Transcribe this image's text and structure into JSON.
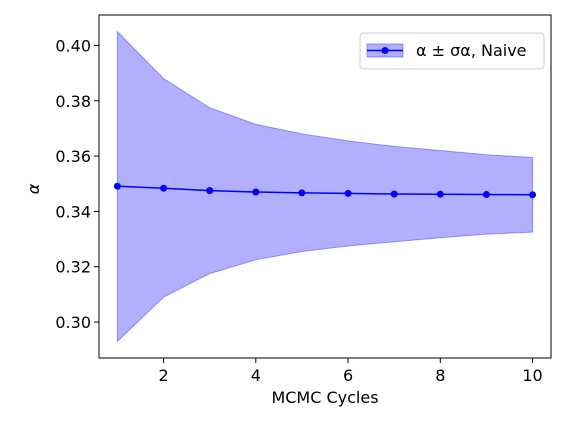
{
  "chart_data": {
    "type": "line",
    "xlabel": "MCMC Cycles",
    "ylabel": "α",
    "xlim": [
      0.6,
      10.4
    ],
    "ylim": [
      0.287,
      0.411
    ],
    "xticks": [
      2,
      4,
      6,
      8,
      10
    ],
    "xtick_labels": [
      "2",
      "4",
      "6",
      "8",
      "10"
    ],
    "yticks": [
      0.3,
      0.32,
      0.34,
      0.36,
      0.38,
      0.4
    ],
    "ytick_labels": [
      "0.30",
      "0.32",
      "0.34",
      "0.36",
      "0.38",
      "0.40"
    ],
    "grid": false,
    "legend_position": "top-right",
    "series": [
      {
        "name": "α ± σα, Naive",
        "color": "#0000ff",
        "band_color": "#b0b0ff",
        "x": [
          1,
          2,
          3,
          4,
          5,
          6,
          7,
          8,
          9,
          10
        ],
        "y": [
          0.3491,
          0.3484,
          0.3475,
          0.347,
          0.3467,
          0.3465,
          0.3463,
          0.3462,
          0.3461,
          0.346
        ],
        "y_upper": [
          0.405,
          0.388,
          0.3775,
          0.3715,
          0.368,
          0.3655,
          0.3635,
          0.362,
          0.3605,
          0.3595
        ],
        "y_lower": [
          0.293,
          0.309,
          0.3175,
          0.3225,
          0.3255,
          0.3275,
          0.329,
          0.3305,
          0.3318,
          0.3325
        ]
      }
    ]
  }
}
